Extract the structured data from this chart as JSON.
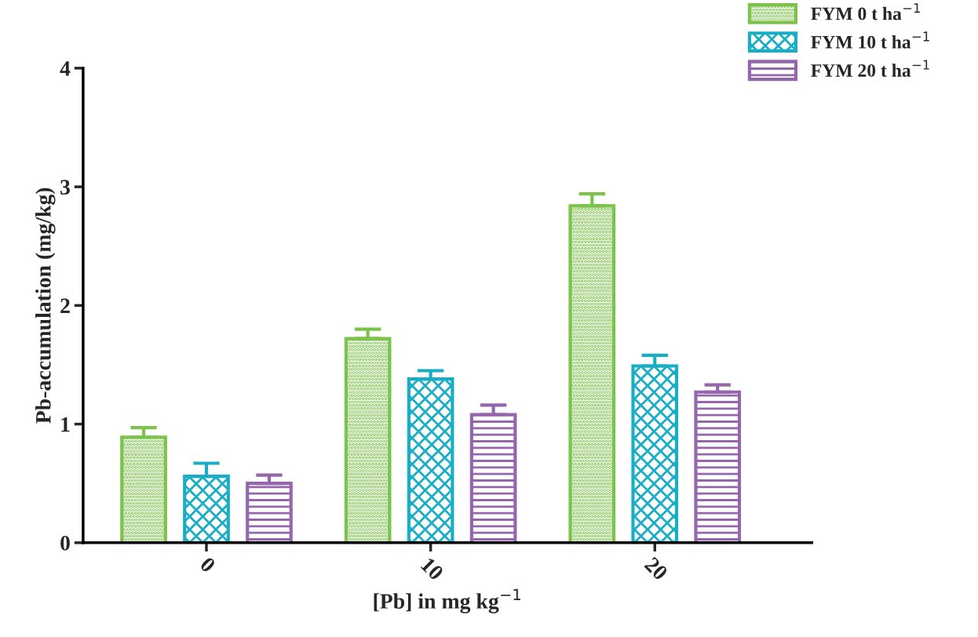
{
  "chart_data": {
    "type": "bar",
    "xlabel": "[Pb] in mg kg$^{−1}$",
    "ylabel": "Pb-accumulation (mg/kg)",
    "categories": [
      "0",
      "10",
      "20"
    ],
    "series": [
      {
        "name": "FYM 0 t ha$^{−1}$",
        "color": "#7dc24b",
        "values": [
          0.89,
          1.72,
          2.84
        ],
        "errors": [
          [
            0.89,
            0.97
          ],
          [
            1.72,
            1.8
          ],
          [
            2.84,
            2.94
          ]
        ]
      },
      {
        "name": "FYM 10 t ha$^{−1}$",
        "color": "#1aadc6",
        "values": [
          0.56,
          1.38,
          1.49
        ],
        "errors": [
          [
            0.56,
            0.67
          ],
          [
            1.38,
            1.45
          ],
          [
            1.49,
            1.58
          ]
        ]
      },
      {
        "name": "FYM 20 t ha$^{−1}$",
        "color": "#9467ad",
        "values": [
          0.5,
          1.08,
          1.27
        ],
        "errors": [
          [
            0.5,
            0.57
          ],
          [
            1.08,
            1.16
          ],
          [
            1.27,
            1.33
          ]
        ]
      }
    ],
    "ylim": [
      0,
      4
    ],
    "yticks": [
      0,
      1,
      2,
      3,
      4
    ],
    "grid": false,
    "legend": "top right"
  }
}
